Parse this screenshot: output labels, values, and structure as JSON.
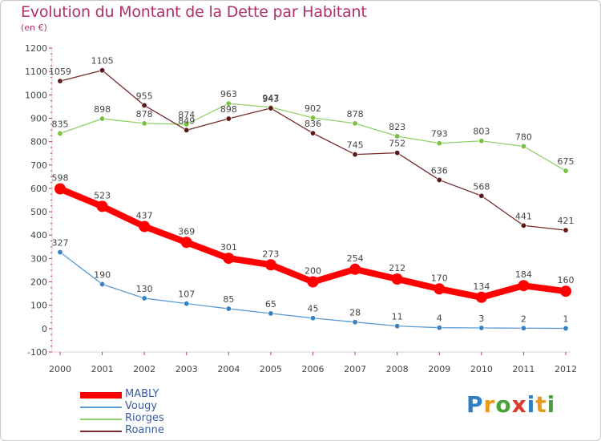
{
  "title": "Evolution du Montant de la Dette par Habitant",
  "subtitle": "(en €)",
  "logo": {
    "text": "Proxiti",
    "letters": [
      {
        "ch": "P",
        "color": "#2f7fc4"
      },
      {
        "ch": "r",
        "color": "#e69a1e"
      },
      {
        "ch": "o",
        "color": "#4aa33a"
      },
      {
        "ch": "x",
        "color": "#d93a2b"
      },
      {
        "ch": "i",
        "color": "#2f7fc4"
      },
      {
        "ch": "t",
        "color": "#e69a1e"
      },
      {
        "ch": "i",
        "color": "#4aa33a"
      }
    ]
  },
  "chart_data": {
    "type": "line",
    "title": "Evolution du Montant de la Dette par Habitant",
    "subtitle": "(en €)",
    "x": [
      "2000",
      "2001",
      "2002",
      "2003",
      "2004",
      "2005",
      "2006",
      "2007",
      "2008",
      "2009",
      "2010",
      "2011",
      "2012"
    ],
    "ylim": [
      -100,
      1200
    ],
    "yticks": [
      -100,
      0,
      100,
      200,
      300,
      400,
      500,
      600,
      700,
      800,
      900,
      1000,
      1100,
      1200
    ],
    "grid": false,
    "legend_position": "bottom-left",
    "series": [
      {
        "name": "MABLY",
        "color": "#ff0000",
        "point_color": "#ff0000",
        "thick": true,
        "values": [
          598,
          523,
          437,
          369,
          301,
          273,
          200,
          254,
          212,
          170,
          134,
          184,
          160
        ]
      },
      {
        "name": "Vougy",
        "color": "#5b9bd5",
        "point_color": "#3a7fc2",
        "thick": false,
        "values": [
          327,
          190,
          130,
          107,
          85,
          65,
          45,
          28,
          11,
          4,
          3,
          2,
          1
        ]
      },
      {
        "name": "Riorges",
        "color": "#8fd16a",
        "point_color": "#7ac143",
        "thick": false,
        "values": [
          835,
          898,
          878,
          874,
          963,
          947,
          902,
          878,
          823,
          793,
          803,
          780,
          675
        ]
      },
      {
        "name": "Roanne",
        "color": "#7a2a2a",
        "point_color": "#5a1a1a",
        "thick": false,
        "values": [
          1059,
          1105,
          955,
          849,
          898,
          943,
          836,
          745,
          752,
          636,
          568,
          441,
          421
        ]
      }
    ]
  }
}
